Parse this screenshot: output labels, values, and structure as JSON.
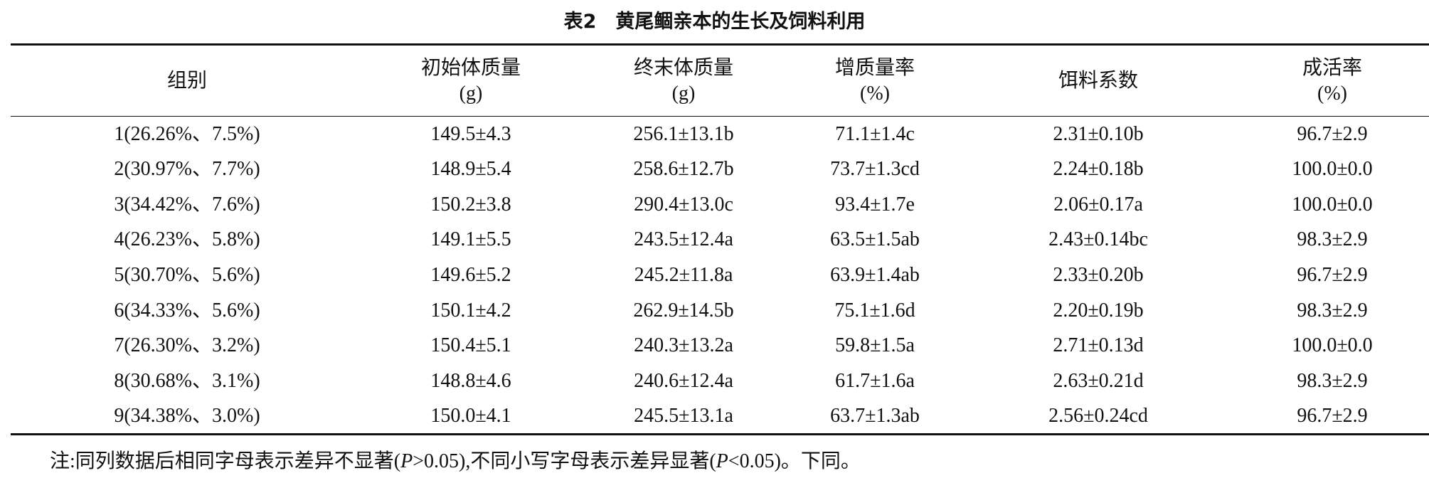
{
  "title": "表2　黄尾鲴亲本的生长及饲料利用",
  "table": {
    "header": [
      [
        "组别"
      ],
      [
        "初始体质量",
        "(g)"
      ],
      [
        "终末体质量",
        "(g)"
      ],
      [
        "增质量率",
        "(%)"
      ],
      [
        "饵料系数"
      ],
      [
        "成活率",
        "(%)"
      ]
    ],
    "rows": [
      [
        "1(26.26%、7.5%)",
        "149.5±4.3",
        "256.1±13.1b",
        "71.1±1.4c",
        "2.31±0.10b",
        "96.7±2.9"
      ],
      [
        "2(30.97%、7.7%)",
        "148.9±5.4",
        "258.6±12.7b",
        "73.7±1.3cd",
        "2.24±0.18b",
        "100.0±0.0"
      ],
      [
        "3(34.42%、7.6%)",
        "150.2±3.8",
        "290.4±13.0c",
        "93.4±1.7e",
        "2.06±0.17a",
        "100.0±0.0"
      ],
      [
        "4(26.23%、5.8%)",
        "149.1±5.5",
        "243.5±12.4a",
        "63.5±1.5ab",
        "2.43±0.14bc",
        "98.3±2.9"
      ],
      [
        "5(30.70%、5.6%)",
        "149.6±5.2",
        "245.2±11.8a",
        "63.9±1.4ab",
        "2.33±0.20b",
        "96.7±2.9"
      ],
      [
        "6(34.33%、5.6%)",
        "150.1±4.2",
        "262.9±14.5b",
        "75.1±1.6d",
        "2.20±0.19b",
        "98.3±2.9"
      ],
      [
        "7(26.30%、3.2%)",
        "150.4±5.1",
        "240.3±13.2a",
        "59.8±1.5a",
        "2.71±0.13d",
        "100.0±0.0"
      ],
      [
        "8(30.68%、3.1%)",
        "148.8±4.6",
        "240.6±12.4a",
        "61.7±1.6a",
        "2.63±0.21d",
        "98.3±2.9"
      ],
      [
        "9(34.38%、3.0%)",
        "150.0±4.1",
        "245.5±13.1a",
        "63.7±1.3ab",
        "2.56±0.24cd",
        "96.7±2.9"
      ]
    ]
  },
  "note": [
    "注:同列数据后相同字母表示差异不显著(",
    "P",
    ">0.05),不同小写字母表示差异显著(",
    "P",
    "<0.05)。下同。"
  ]
}
